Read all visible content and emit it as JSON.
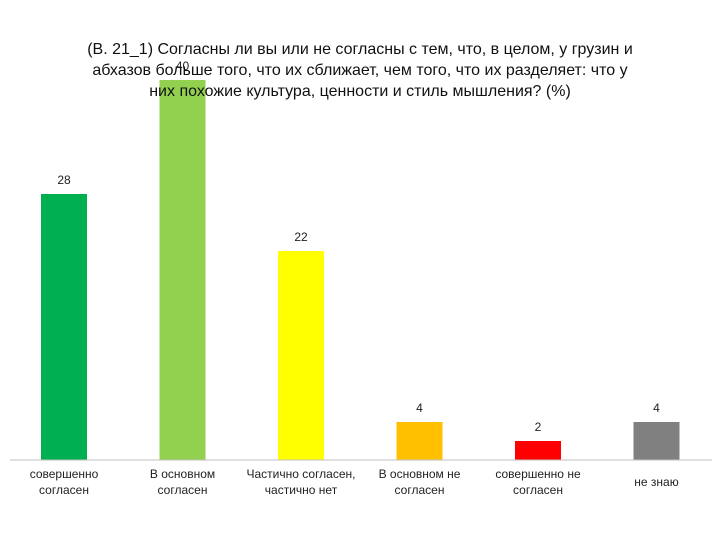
{
  "chart_data": {
    "type": "bar",
    "title_lines": [
      "(В. 21_1)  Согласны ли вы или не согласны с тем, что, в целом, у грузин и",
      "абхазов больше того, что их сближает, чем того, что их разделяет:  что у",
      "них похожие культура, ценности и стиль мышления?  (%)"
    ],
    "categories": [
      [
        "совершенно",
        "согласен"
      ],
      [
        "В основном",
        "согласен"
      ],
      [
        "Частично согласен,",
        "частично нет"
      ],
      [
        "В основном не",
        "согласен"
      ],
      [
        "совершенно не",
        "согласен"
      ],
      [
        "не знаю"
      ]
    ],
    "values": [
      28,
      40,
      22,
      4,
      2,
      4
    ],
    "value_labels": [
      "28",
      "40",
      "22",
      "4",
      "2",
      "4"
    ],
    "colors": [
      "#00b050",
      "#92d050",
      "#ffff00",
      "#ffc000",
      "#ff0000",
      "#808080"
    ],
    "ylim": [
      0,
      40
    ],
    "grid": false,
    "legend": "none"
  }
}
